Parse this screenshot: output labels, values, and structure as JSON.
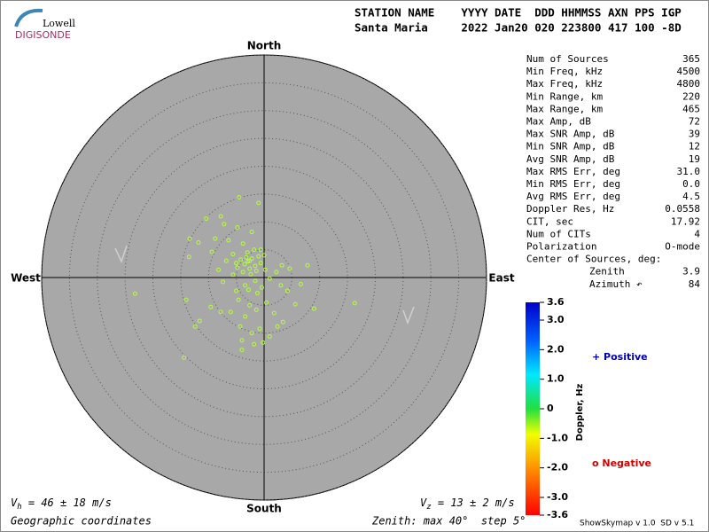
{
  "logo": {
    "top": "Lowell",
    "bottom": "DIGISONDE"
  },
  "header": {
    "columns": "STATION NAME    YYYY DATE  DDD HHMMSS AXN PPS IGP",
    "values": "Santa Maria     2022 Jan20 020 223800 417 100 -8D"
  },
  "stats": [
    [
      "Num of Sources",
      "365"
    ],
    [
      "Min Freq, kHz",
      "4500"
    ],
    [
      "Max Freq, kHz",
      "4800"
    ],
    [
      "Min Range, km",
      "220"
    ],
    [
      "Max Range, km",
      "465"
    ],
    [
      "Max Amp, dB",
      "72"
    ],
    [
      "Max SNR Amp, dB",
      "39"
    ],
    [
      "Min SNR Amp, dB",
      "12"
    ],
    [
      "Avg SNR Amp, dB",
      "19"
    ],
    [
      "Max RMS Err, deg",
      "31.0"
    ],
    [
      "Min RMS Err, deg",
      "0.0"
    ],
    [
      "Avg RMS Err, deg",
      "4.5"
    ],
    [
      "Doppler Res, Hz",
      "0.0558"
    ],
    [
      "CIT, sec",
      "17.92"
    ],
    [
      "Num of CITs",
      "4"
    ],
    [
      "Polarization",
      "O-mode"
    ]
  ],
  "center": {
    "label": "Center of Sources, deg:",
    "rows": [
      [
        "Zenith",
        "3.9"
      ],
      [
        "Azimuth ↶",
        "84"
      ]
    ]
  },
  "chart_data": {
    "type": "scatter",
    "directions": {
      "north": "North",
      "south": "South",
      "west": "West",
      "east": "East"
    },
    "xlim": [
      -40,
      40
    ],
    "ylim": [
      -40,
      40
    ],
    "rings": [
      5,
      10,
      15,
      20,
      25,
      30,
      35,
      40
    ],
    "color": "#b4ff3c",
    "x": [
      -2.9,
      -2.2,
      -3.5,
      -1.6,
      -2.6,
      -4.2,
      -1.0,
      -3.0,
      -1.8,
      -4.8,
      -0.6,
      -2.4,
      0.2,
      -5.6,
      -3.8,
      -6.4,
      -8.8,
      -7.2,
      -4.8,
      -2.2,
      -10.4,
      -4.5,
      -1.0,
      -7.8,
      -13.4,
      -11.8,
      -13.5,
      -5.6,
      -7.4,
      -3.4,
      -1.6,
      -0.4,
      1.0,
      2.2,
      3.2,
      4.6,
      7.8,
      3.0,
      4.2,
      -23.2,
      -14.0,
      -4.6,
      -2.6,
      -6.0,
      -3.4,
      -1.4,
      0.4,
      1.8,
      -7.8,
      -9.6,
      -12.4,
      -11.6,
      -4.3,
      -2.2,
      -0.8,
      1.0,
      2.4,
      -4.0,
      -1.8,
      -0.2,
      3.4,
      -4.0,
      -14.4,
      9.0,
      16.3,
      5.6,
      6.6,
      -0.6,
      -2.6,
      -3.2,
      -1.4,
      -3.8,
      0.0,
      -5.0,
      -6.8,
      -1.2,
      -2.8,
      -5.0,
      -8.2,
      -9.4
    ],
    "y": [
      2.9,
      3.4,
      2.4,
      2.1,
      1.6,
      3.2,
      3.8,
      4.5,
      5.0,
      1.8,
      2.6,
      0.6,
      1.4,
      4.2,
      6.1,
      6.7,
      7.0,
      9.6,
      9.0,
      8.2,
      10.6,
      14.4,
      13.4,
      11.0,
      7.0,
      6.3,
      3.7,
      0.5,
      -0.8,
      -1.4,
      -0.6,
      -1.8,
      -0.2,
      1.0,
      2.2,
      1.6,
      2.2,
      -1.4,
      -2.4,
      -2.9,
      -4.0,
      -4.0,
      -5.0,
      -6.2,
      -7.0,
      -5.8,
      -4.5,
      -6.4,
      -6.2,
      -5.3,
      -8.8,
      -7.8,
      -8.8,
      -10.0,
      -9.2,
      -10.6,
      -8.8,
      -11.3,
      -12.0,
      -11.7,
      -8.0,
      -13.0,
      -14.4,
      -5.6,
      -4.6,
      -4.8,
      -1.2,
      5.0,
      3.0,
      3.6,
      1.2,
      1.0,
      4.0,
      2.6,
      3.0,
      -2.8,
      -2.2,
      -2.4,
      1.4,
      4.6
    ]
  },
  "colorbar": {
    "label": "Doppler, Hz",
    "lim": [
      -3.6,
      3.6
    ],
    "ticks": [
      {
        "value": 3.6,
        "label": "3.6"
      },
      {
        "value": 3,
        "label": "3.0"
      },
      {
        "value": 2,
        "label": "2.0"
      },
      {
        "value": 1,
        "label": "1.0"
      },
      0,
      {
        "value": -1,
        "label": "-1.0"
      },
      {
        "value": -2,
        "label": "-2.0"
      },
      {
        "value": -3,
        "label": "-3.0"
      },
      {
        "value": -3.6,
        "label": "-3.6"
      }
    ],
    "positive": "+ Positive",
    "negative": "o Negative"
  },
  "velocity_h": {
    "symbol": "V",
    "sub": "h",
    "text": " = 46 ± 18 m/s"
  },
  "velocity_z": {
    "symbol": "V",
    "sub": "z",
    "text": " = 13 ± 2 m/s"
  },
  "footer": {
    "coords": "Geographic coordinates",
    "zenith": "Zenith: max 40°  step 5°",
    "version": "ShowSkymap v 1.0  SD v 5.1"
  }
}
